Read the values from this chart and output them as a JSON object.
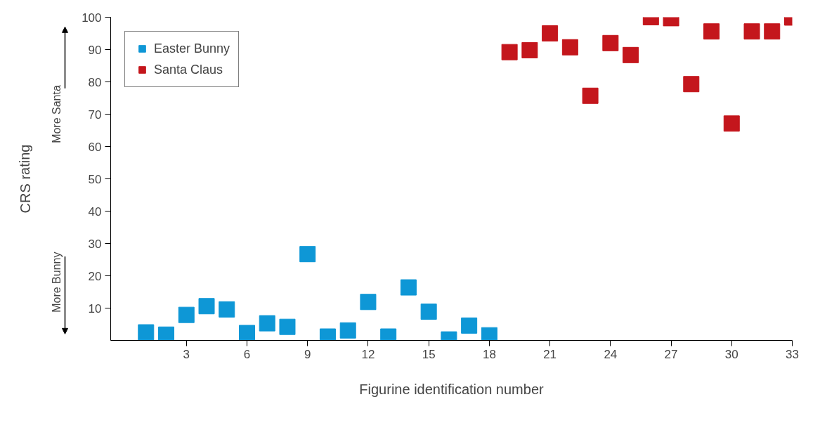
{
  "chart_data": {
    "type": "scatter",
    "xlabel": "Figurine identification number",
    "ylabel": "CRS rating",
    "xlim": [
      -0.75,
      33
    ],
    "xticks": [
      3,
      6,
      9,
      12,
      15,
      18,
      21,
      24,
      27,
      30,
      33
    ],
    "ylim": [
      0,
      100
    ],
    "yticks": [
      10,
      20,
      30,
      40,
      50,
      60,
      70,
      80,
      90,
      100
    ],
    "grid": false,
    "legend": "top left",
    "marker": "square",
    "annotations": [
      "More Santa",
      "More Bunny"
    ],
    "series": [
      {
        "name": "Easter Bunny",
        "color": "#0e97d6",
        "x": [
          1,
          2,
          3,
          4,
          5,
          6,
          7,
          8,
          9,
          10,
          11,
          12,
          13,
          14,
          15,
          16,
          17,
          18
        ],
        "values": [
          2.5,
          1.8,
          7.9,
          10.6,
          9.6,
          2.3,
          5.3,
          4.2,
          26.7,
          1.2,
          3.1,
          11.9,
          1.2,
          16.4,
          8.9,
          0.3,
          4.6,
          1.6
        ]
      },
      {
        "name": "Santa Claus",
        "color": "#c4161c",
        "x": [
          19,
          20,
          21,
          22,
          23,
          24,
          25,
          26,
          27,
          28,
          29,
          30,
          31,
          32,
          33
        ],
        "values": [
          89.2,
          89.8,
          95,
          90.7,
          75.7,
          92,
          88.3,
          100,
          99.7,
          79.3,
          95.6,
          67.1,
          95.6,
          95.6,
          99.9
        ]
      }
    ]
  }
}
